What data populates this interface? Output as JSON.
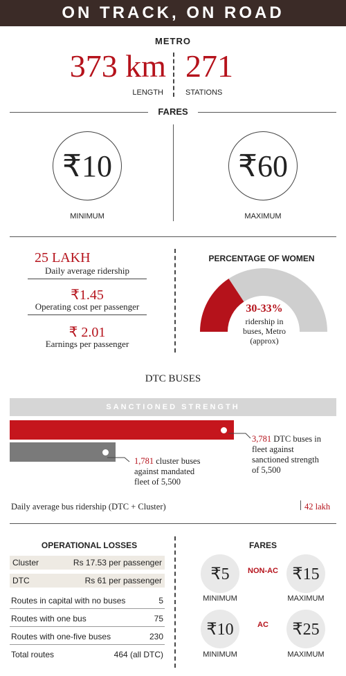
{
  "header": "ON TRACK, ON ROAD",
  "metro": {
    "label": "METRO",
    "length_value": "373 km",
    "length_label": "LENGTH",
    "stations_value": "271",
    "stations_label": "STATIONS"
  },
  "fares": {
    "label": "FARES",
    "min_value": "₹10",
    "min_label": "MINIMUM",
    "max_value": "₹60",
    "max_label": "MAXIMUM"
  },
  "stats": {
    "ridership_value": "25 LAKH",
    "ridership_label": "Daily average ridership",
    "cost_value": "₹1.45",
    "cost_label": "Operating cost per passenger",
    "earn_value": "₹ 2.01",
    "earn_label": "Earnings per passenger"
  },
  "women": {
    "title": "PERCENTAGE OF WOMEN",
    "value": "30-33%",
    "line1": "ridership in",
    "line2": "buses, Metro",
    "line3": "(approx)",
    "share_fraction": 0.315,
    "colors": {
      "fill": "#b5121b",
      "rest": "#cfcfcf"
    }
  },
  "dtc": {
    "title": "DTC BUSES",
    "sanctioned_label": "SANCTIONED STRENGTH",
    "sanctioned": 5500,
    "dtc_buses": 3781,
    "cluster_buses": 1781,
    "dtc_note_num": "3,781",
    "dtc_note_1": " DTC buses in",
    "dtc_note_2": "fleet against",
    "dtc_note_3": "sanctioned strength",
    "dtc_note_4": "of 5,500",
    "cluster_note_num": "1,781",
    "cluster_note_1": " cluster buses",
    "cluster_note_2": "against mandated",
    "cluster_note_3": "fleet of 5,500",
    "ridership_label": "Daily average bus ridership (DTC + Cluster)",
    "ridership_value": "42 lakh",
    "colors": {
      "sanctioned": "#d6d6d6",
      "dtc": "#c5161d",
      "cluster": "#7a7a7a"
    }
  },
  "losses": {
    "title": "OPERATIONAL LOSSES",
    "cluster_label": "Cluster",
    "cluster_value": "Rs 17.53 per passenger",
    "dtc_label": "DTC",
    "dtc_value": "Rs 61 per passenger",
    "routes": [
      {
        "label": "Routes in capital with no buses",
        "value": "5"
      },
      {
        "label": "Routes with one bus",
        "value": "75"
      },
      {
        "label": "Routes with one-five buses",
        "value": "230"
      },
      {
        "label": "Total routes",
        "value": "464 (all DTC)"
      }
    ]
  },
  "bus_fares": {
    "title": "FARES",
    "nonac_label": "NON-AC",
    "nonac_min": "₹5",
    "nonac_max": "₹15",
    "ac_label": "AC",
    "ac_min": "₹10",
    "ac_max": "₹25",
    "min_label": "MINIMUM",
    "max_label": "MAXIMUM"
  }
}
